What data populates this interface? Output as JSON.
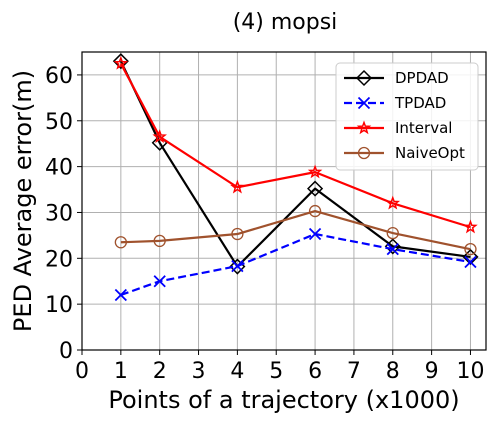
{
  "chart_data": {
    "type": "line",
    "title": "(4) mopsi",
    "xlabel": "Points of a trajectory (x1000)",
    "ylabel": "PED Average error(m)",
    "xlim": [
      0,
      10.4
    ],
    "ylim": [
      0,
      65
    ],
    "xticks": [
      0,
      1,
      2,
      3,
      4,
      5,
      6,
      7,
      8,
      9,
      10
    ],
    "yticks": [
      0,
      10,
      20,
      30,
      40,
      50,
      60
    ],
    "grid": true,
    "legend_position": "top-right",
    "x": [
      1,
      2,
      4,
      6,
      8,
      10
    ],
    "series": [
      {
        "name": "DPDAD",
        "values": [
          63,
          45.2,
          18.2,
          35.2,
          22.6,
          20.3
        ],
        "color": "#000000",
        "marker": "diamond",
        "dash": "solid"
      },
      {
        "name": "TPDAD",
        "values": [
          12,
          15,
          18.3,
          25.3,
          22,
          19.2
        ],
        "color": "#0000ff",
        "marker": "x",
        "dash": "dashed"
      },
      {
        "name": "Interval",
        "values": [
          62.5,
          46.5,
          35.5,
          38.8,
          32,
          26.8
        ],
        "color": "#ff0000",
        "marker": "star",
        "dash": "solid"
      },
      {
        "name": "NaiveOpt",
        "values": [
          23.5,
          23.8,
          25.3,
          30.3,
          25.5,
          22
        ],
        "color": "#a0522d",
        "marker": "circle",
        "dash": "solid"
      }
    ]
  }
}
